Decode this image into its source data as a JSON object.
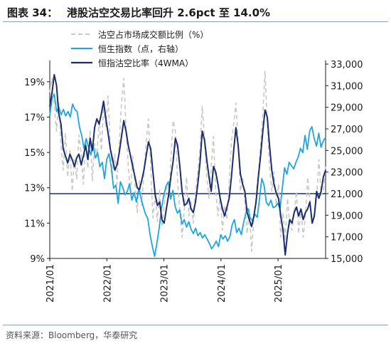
{
  "header": {
    "figure_label": "图表 34：",
    "title": "港股沽空交易比率回升 2.6pct 至 14.0%"
  },
  "footer": {
    "source": "资料来源：Bloomberg，华泰研究"
  },
  "chart_data": {
    "type": "line",
    "x_tick_labels": [
      "2021/01",
      "2022/01",
      "2023/01",
      "2024/01",
      "2025/01"
    ],
    "x_range": [
      "2021-01",
      "2025-11"
    ],
    "left_axis": {
      "ticks": [
        "9%",
        "11%",
        "13%",
        "15%",
        "17%",
        "19%"
      ],
      "range": [
        9,
        20
      ]
    },
    "right_axis": {
      "ticks": [
        "15,000",
        "17,000",
        "19,000",
        "21,000",
        "23,000",
        "25,000",
        "27,000",
        "29,000",
        "31,000",
        "33,000"
      ],
      "range": [
        15000,
        33000
      ]
    },
    "reference_line": {
      "axis": "right",
      "value": 21000,
      "color": "#1a2e6e"
    },
    "legend_position": "top",
    "series": [
      {
        "name": "沽空占市场成交额比例（%）",
        "axis": "left",
        "style": "dashed",
        "color": "#c8c8c8",
        "values": [
          18.4,
          19.2,
          17.6,
          16.2,
          17.9,
          15.4,
          14.0,
          16.1,
          13.6,
          15.2,
          12.8,
          14.6,
          13.5,
          16.0,
          14.9,
          13.2,
          15.8,
          14.1,
          16.2,
          13.4,
          15.5,
          14.7,
          16.8,
          15.1,
          17.6,
          16.4,
          18.2,
          15.4,
          13.8,
          14.9,
          13.2,
          15.6,
          17.8,
          19.2,
          16.4,
          14.3,
          12.6,
          14.8,
          13.2,
          11.6,
          13.4,
          12.0,
          13.8,
          15.6,
          16.9,
          14.2,
          11.3,
          12.6,
          11.1,
          12.9,
          10.8,
          11.9,
          13.2,
          12.4,
          14.6,
          16.8,
          16.2,
          13.4,
          11.6,
          10.2,
          11.8,
          13.6,
          11.4,
          12.2,
          11.0,
          12.8,
          13.9,
          15.2,
          17.6,
          15.8,
          13.6,
          12.4,
          14.2,
          15.9,
          12.8,
          11.4,
          12.6,
          10.6,
          12.0,
          11.2,
          13.4,
          15.6,
          16.6,
          17.8,
          15.6,
          12.8,
          13.6,
          12.2,
          10.4,
          11.8,
          9.4,
          11.2,
          12.6,
          13.8,
          15.4,
          17.2,
          19.6,
          16.6,
          14.2,
          12.8,
          13.9,
          12.0,
          13.2,
          10.2,
          11.6,
          10.0,
          12.4,
          11.0,
          10.6,
          11.6,
          12.8,
          10.4,
          11.8,
          10.2,
          11.4,
          13.6,
          12.2,
          11.0,
          11.6,
          12.4,
          14.6,
          12.6,
          12.8,
          14.2
        ]
      },
      {
        "name": "恒生指数（点，右轴）",
        "axis": "right",
        "style": "solid",
        "color": "#1ea6dc",
        "values": [
          28200,
          29800,
          30200,
          28600,
          29000,
          28300,
          28800,
          28200,
          28600,
          28100,
          29300,
          28800,
          28600,
          27200,
          26400,
          25200,
          26100,
          25300,
          24600,
          25600,
          24300,
          24800,
          23500,
          23900,
          22400,
          24200,
          24700,
          23400,
          21500,
          21800,
          20100,
          22100,
          21600,
          20900,
          21200,
          21900,
          20400,
          21100,
          20200,
          21500,
          20600,
          19800,
          19100,
          18700,
          17200,
          16100,
          15200,
          16400,
          17800,
          19600,
          20800,
          21700,
          22100,
          20500,
          21300,
          19800,
          19200,
          19500,
          18200,
          18600,
          17900,
          18400,
          17700,
          17300,
          17800,
          17100,
          17400,
          16900,
          17200,
          16800,
          16400,
          15900,
          16200,
          16600,
          16100,
          17200,
          16800,
          17100,
          16600,
          17000,
          18100,
          18600,
          17400,
          17800,
          17200,
          18300,
          19200,
          19600,
          18700,
          18500,
          19100,
          18800,
          20500,
          22400,
          21800,
          20200,
          19900,
          20400,
          19700,
          19800,
          20100,
          19600,
          21500,
          23400,
          22800,
          23900,
          23600,
          23300,
          23900,
          24400,
          25200,
          24800,
          26400,
          25100,
          26800,
          27200,
          26100,
          25400,
          26600,
          25300,
          25900,
          26200
        ]
      },
      {
        "name": "恒指沽空比率（4WMA）",
        "axis": "left",
        "style": "solid",
        "color": "#1a2e6e",
        "values": [
          17.6,
          18.4,
          19.4,
          18.8,
          17.2,
          16.6,
          15.2,
          14.8,
          14.4,
          14.9,
          14.6,
          14.2,
          14.7,
          14.9,
          14.3,
          14.8,
          15.4,
          14.6,
          15.8,
          15.1,
          16.4,
          16.9,
          16.6,
          17.2,
          17.9,
          16.9,
          16.1,
          15.2,
          14.6,
          14.0,
          14.3,
          15.0,
          15.9,
          16.8,
          16.2,
          15.4,
          14.8,
          14.2,
          13.6,
          13.0,
          12.9,
          13.4,
          14.0,
          14.8,
          15.6,
          15.2,
          13.9,
          12.6,
          12.0,
          12.2,
          11.2,
          11.0,
          11.8,
          12.6,
          13.6,
          14.5,
          15.8,
          15.4,
          14.2,
          12.8,
          12.0,
          12.1,
          12.4,
          11.8,
          11.6,
          12.2,
          13.2,
          14.4,
          16.2,
          15.7,
          14.6,
          13.6,
          12.8,
          14.2,
          13.9,
          13.2,
          12.4,
          11.8,
          11.4,
          11.9,
          12.4,
          13.6,
          15.1,
          16.4,
          15.4,
          13.8,
          13.2,
          12.8,
          11.6,
          11.2,
          10.8,
          11.4,
          12.2,
          13.6,
          14.8,
          16.2,
          17.4,
          17.0,
          15.4,
          14.0,
          13.2,
          12.7,
          12.4,
          11.4,
          10.6,
          9.2,
          10.4,
          11.2,
          11.0,
          11.6,
          11.9,
          11.4,
          11.8,
          11.2,
          11.6,
          11.8,
          12.2,
          11.0,
          11.4,
          12.8,
          12.4,
          12.8,
          13.6,
          14.0
        ]
      }
    ]
  }
}
